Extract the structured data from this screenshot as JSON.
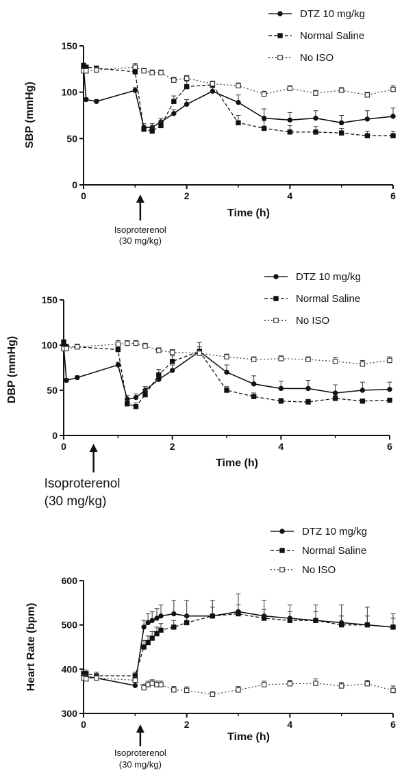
{
  "chart_data": [
    {
      "type": "line",
      "ylabel": "SBP (mmHg)",
      "xlabel": "Time (h)",
      "xlim": [
        0,
        6
      ],
      "ylim": [
        0,
        150
      ],
      "xticks": [
        "0",
        "2",
        "4",
        "6"
      ],
      "yticks": [
        "0",
        "50",
        "100",
        "150"
      ],
      "legend_position": "top-right",
      "grid": false,
      "annotation": {
        "text": [
          "Isoproterenol",
          "(30 mg/kg)"
        ],
        "x": 1.1
      },
      "series": [
        {
          "name": "DTZ 10 mg/kg",
          "marker": "filled-circle",
          "line": "solid",
          "x": [
            0,
            0.05,
            0.25,
            1.0,
            1.17,
            1.33,
            1.5,
            1.75,
            2.0,
            2.5,
            3.0,
            3.5,
            4.0,
            4.5,
            5.0,
            5.5,
            6.0
          ],
          "y": [
            127,
            92,
            90,
            102,
            62,
            62,
            68,
            77,
            87,
            101,
            89,
            72,
            70,
            72,
            67,
            71,
            74
          ],
          "err": [
            3,
            2,
            2,
            3,
            4,
            4,
            4,
            4,
            5,
            4,
            8,
            10,
            8,
            8,
            8,
            9,
            9
          ]
        },
        {
          "name": "Normal Saline",
          "marker": "filled-square",
          "line": "dashed",
          "x": [
            0,
            0.05,
            0.25,
            1.0,
            1.17,
            1.33,
            1.5,
            1.75,
            2.0,
            2.5,
            3.0,
            3.5,
            4.0,
            4.5,
            5.0,
            5.5,
            6.0
          ],
          "y": [
            129,
            127,
            126,
            122,
            60,
            58,
            64,
            90,
            106,
            108,
            67,
            61,
            57,
            57,
            56,
            53,
            53
          ],
          "err": [
            2,
            2,
            2,
            3,
            4,
            5,
            5,
            6,
            6,
            4,
            8,
            8,
            7,
            6,
            5,
            5,
            5
          ]
        },
        {
          "name": "No ISO",
          "marker": "open-square",
          "line": "dotted",
          "x": [
            0,
            0.05,
            0.25,
            1.0,
            1.17,
            1.33,
            1.5,
            1.75,
            2.0,
            2.5,
            3.0,
            3.5,
            4.0,
            4.5,
            5.0,
            5.5,
            6.0
          ],
          "y": [
            123,
            123,
            124,
            127,
            123,
            121,
            121,
            113,
            115,
            109,
            107,
            98,
            104,
            99,
            102,
            97,
            103
          ],
          "err": [
            3,
            3,
            3,
            4,
            3,
            3,
            3,
            3,
            3,
            3,
            3,
            3,
            3,
            3,
            3,
            3,
            4
          ]
        }
      ]
    },
    {
      "type": "line",
      "ylabel": "DBP (mmHg)",
      "xlabel": "Time (h)",
      "xlim": [
        0,
        6
      ],
      "ylim": [
        0,
        150
      ],
      "xticks": [
        "0",
        "2",
        "4",
        "6"
      ],
      "yticks": [
        "0",
        "50",
        "100",
        "150"
      ],
      "legend_position": "top-right",
      "grid": false,
      "annotation": {
        "text": [
          "Isoproterenol",
          "(30 mg/kg)"
        ],
        "x": 0.55
      },
      "series": [
        {
          "name": "DTZ 10 mg/kg",
          "marker": "filled-circle",
          "line": "solid",
          "x": [
            0,
            0.05,
            0.25,
            1.0,
            1.17,
            1.33,
            1.5,
            1.75,
            2.0,
            2.5,
            3.0,
            3.5,
            4.0,
            4.5,
            5.0,
            5.5,
            6.0
          ],
          "y": [
            99,
            61,
            64,
            78,
            40,
            42,
            50,
            62,
            72,
            93,
            70,
            57,
            52,
            52,
            47,
            50,
            51
          ],
          "err": [
            3,
            2,
            2,
            3,
            4,
            4,
            4,
            5,
            6,
            10,
            8,
            9,
            8,
            9,
            9,
            9,
            8
          ]
        },
        {
          "name": "Normal Saline",
          "marker": "filled-square",
          "line": "dashed",
          "x": [
            0,
            0.05,
            0.25,
            1.0,
            1.17,
            1.33,
            1.5,
            1.75,
            2.0,
            2.5,
            3.0,
            3.5,
            4.0,
            4.5,
            5.0,
            5.5,
            6.0
          ],
          "y": [
            103,
            98,
            98,
            95,
            35,
            32,
            45,
            67,
            82,
            93,
            50,
            43,
            38,
            37,
            41,
            38,
            39
          ],
          "err": [
            3,
            3,
            3,
            4,
            4,
            4,
            5,
            6,
            6,
            5,
            4,
            4,
            3,
            3,
            3,
            2,
            2
          ]
        },
        {
          "name": "No ISO",
          "marker": "open-square",
          "line": "dotted",
          "x": [
            0,
            0.05,
            0.25,
            1.0,
            1.17,
            1.33,
            1.5,
            1.75,
            2.0,
            2.5,
            3.0,
            3.5,
            4.0,
            4.5,
            5.0,
            5.5,
            6.0
          ],
          "y": [
            96,
            96,
            98,
            101,
            102,
            102,
            99,
            94,
            92,
            91,
            87,
            84,
            85,
            84,
            82,
            79,
            83
          ],
          "err": [
            3,
            3,
            3,
            4,
            3,
            3,
            3,
            3,
            3,
            3,
            3,
            3,
            3,
            3,
            4,
            4,
            4
          ]
        }
      ]
    },
    {
      "type": "line",
      "ylabel": "Heart Rate (bpm)",
      "xlabel": "Time (h)",
      "xlim": [
        0,
        6
      ],
      "ylim": [
        300,
        600
      ],
      "xticks": [
        "0",
        "2",
        "4",
        "6"
      ],
      "yticks": [
        "300",
        "400",
        "500",
        "600"
      ],
      "legend_position": "top-right",
      "grid": false,
      "annotation": {
        "text": [
          "Isoproterenol",
          "(30 mg/kg)"
        ],
        "x": 1.1
      },
      "series": [
        {
          "name": "DTZ 10 mg/kg",
          "marker": "filled-circle",
          "line": "solid",
          "x": [
            0,
            0.05,
            0.25,
            1.0,
            1.17,
            1.25,
            1.33,
            1.42,
            1.5,
            1.75,
            2.0,
            2.5,
            3.0,
            3.5,
            4.0,
            4.5,
            5.0,
            5.5,
            6.0
          ],
          "y": [
            383,
            383,
            380,
            363,
            495,
            505,
            510,
            515,
            520,
            525,
            520,
            520,
            530,
            520,
            515,
            510,
            505,
            500,
            495
          ],
          "err": [
            8,
            8,
            8,
            8,
            15,
            20,
            20,
            22,
            25,
            30,
            35,
            35,
            40,
            35,
            30,
            35,
            40,
            40,
            30
          ]
        },
        {
          "name": "Normal Saline",
          "marker": "filled-square",
          "line": "dashed",
          "x": [
            0,
            0.05,
            0.25,
            1.0,
            1.17,
            1.25,
            1.33,
            1.42,
            1.5,
            1.75,
            2.0,
            2.5,
            3.0,
            3.5,
            4.0,
            4.5,
            5.0,
            5.5,
            6.0
          ],
          "y": [
            390,
            390,
            385,
            385,
            450,
            460,
            470,
            480,
            488,
            495,
            505,
            520,
            525,
            515,
            510,
            510,
            500,
            500,
            495
          ],
          "err": [
            8,
            8,
            8,
            8,
            15,
            15,
            15,
            15,
            15,
            15,
            15,
            20,
            20,
            20,
            20,
            20,
            20,
            20,
            20
          ]
        },
        {
          "name": "No ISO",
          "marker": "open-square",
          "line": "dotted",
          "x": [
            0,
            0.05,
            0.25,
            1.0,
            1.17,
            1.25,
            1.33,
            1.42,
            1.5,
            1.75,
            2.0,
            2.5,
            3.0,
            3.5,
            4.0,
            4.5,
            5.0,
            5.5,
            6.0
          ],
          "y": [
            380,
            378,
            380,
            375,
            358,
            365,
            368,
            365,
            365,
            353,
            352,
            343,
            353,
            365,
            367,
            368,
            362,
            367,
            352
          ],
          "err": [
            8,
            8,
            8,
            8,
            8,
            8,
            8,
            8,
            8,
            8,
            8,
            6,
            8,
            8,
            8,
            10,
            8,
            8,
            10
          ]
        }
      ]
    }
  ]
}
